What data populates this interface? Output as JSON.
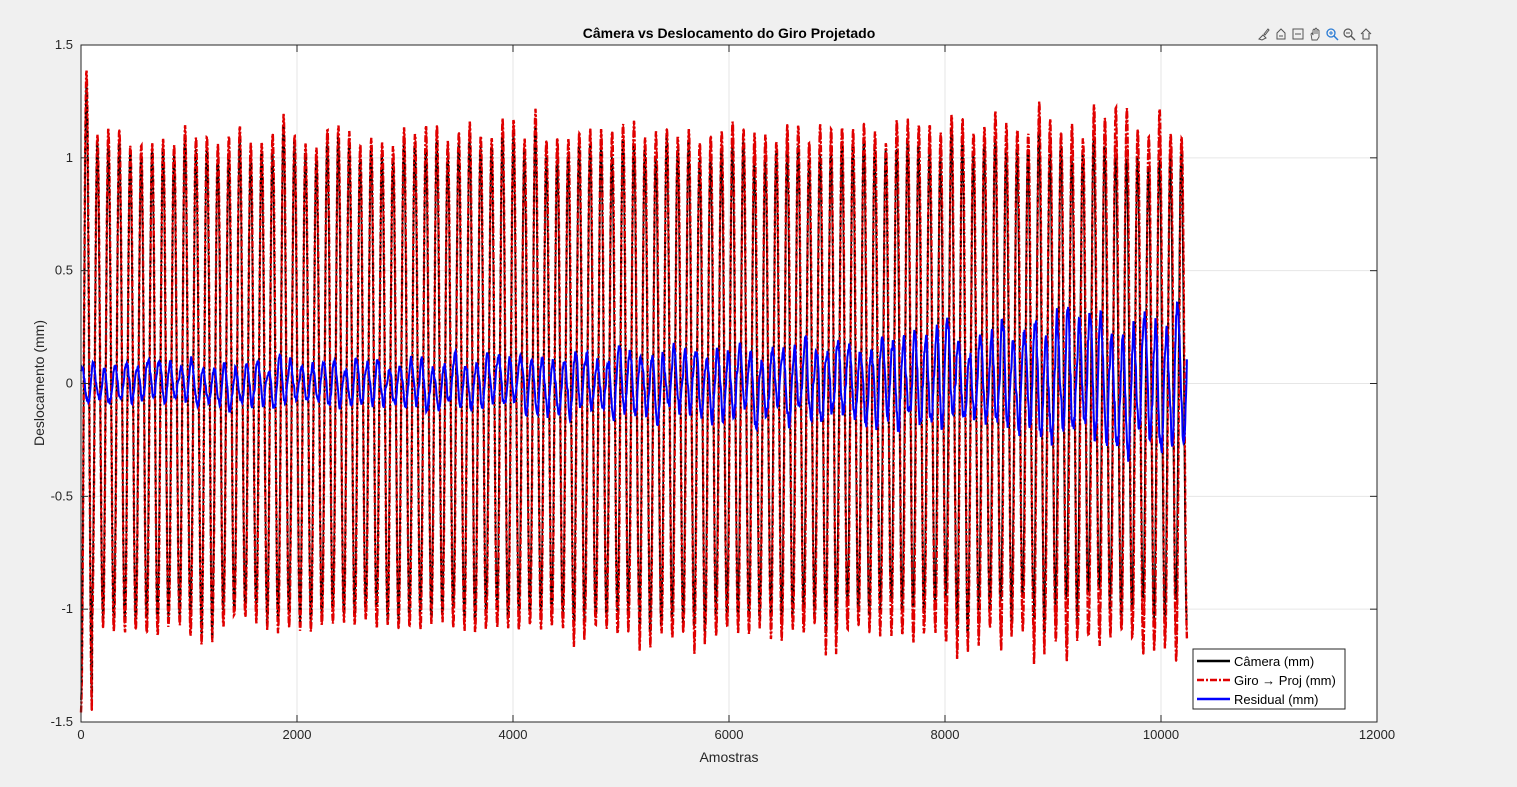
{
  "toolbar": {
    "icons": [
      "brush-icon",
      "data-tips-icon",
      "export-icon",
      "pan-hand-icon",
      "zoom-in-icon",
      "zoom-out-icon",
      "home-icon"
    ]
  },
  "colors": {
    "background": "#f0f0f0",
    "axes_bg": "#ffffff",
    "grid": "#e6e6e6",
    "camera": "#000000",
    "giro": "#e00000",
    "residual": "#0000ff"
  },
  "chart_data": {
    "type": "line",
    "title": "Câmera vs Deslocamento do Giro Projetado",
    "xlabel": "Amostras",
    "ylabel": "Deslocamento (mm)",
    "xlim": [
      0,
      12000
    ],
    "ylim": [
      -1.5,
      1.5
    ],
    "xticks": [
      0,
      2000,
      4000,
      6000,
      8000,
      10000,
      12000
    ],
    "xtick_labels": [
      "0",
      "2000",
      "4000",
      "6000",
      "8000",
      "10000",
      "12000"
    ],
    "yticks": [
      -1.5,
      -1,
      -0.5,
      0,
      0.5,
      1,
      1.5
    ],
    "ytick_labels": [
      "-1.5",
      "-1",
      "-0.5",
      "0",
      "0.5",
      "1",
      "1.5"
    ],
    "grid": true,
    "legend_location": "bottom-right",
    "n_samples": 10240,
    "oscillation": {
      "cycles": 101,
      "typical_peak": 1.07,
      "typical_trough": -1.05,
      "initial_peak": 1.36,
      "initial_trough": -1.43
    },
    "series": [
      {
        "name": "Câmera (mm)",
        "color": "#000000",
        "style": "solid",
        "x_range": [
          0,
          10240
        ],
        "y_range": [
          -1.38,
          1.32
        ]
      },
      {
        "name": "Giro → Proj (mm)",
        "color": "#e00000",
        "style": "dashdot",
        "x_range": [
          0,
          10240
        ],
        "y_range": [
          -1.43,
          1.36
        ]
      },
      {
        "name": "Residual (mm)",
        "color": "#0000ff",
        "style": "solid",
        "x_range": [
          0,
          10240
        ],
        "y_range": [
          -0.38,
          0.38
        ],
        "envelope": [
          [
            0,
            0.1
          ],
          [
            3000,
            0.12
          ],
          [
            6000,
            0.18
          ],
          [
            8000,
            0.25
          ],
          [
            10240,
            0.37
          ]
        ]
      }
    ]
  }
}
